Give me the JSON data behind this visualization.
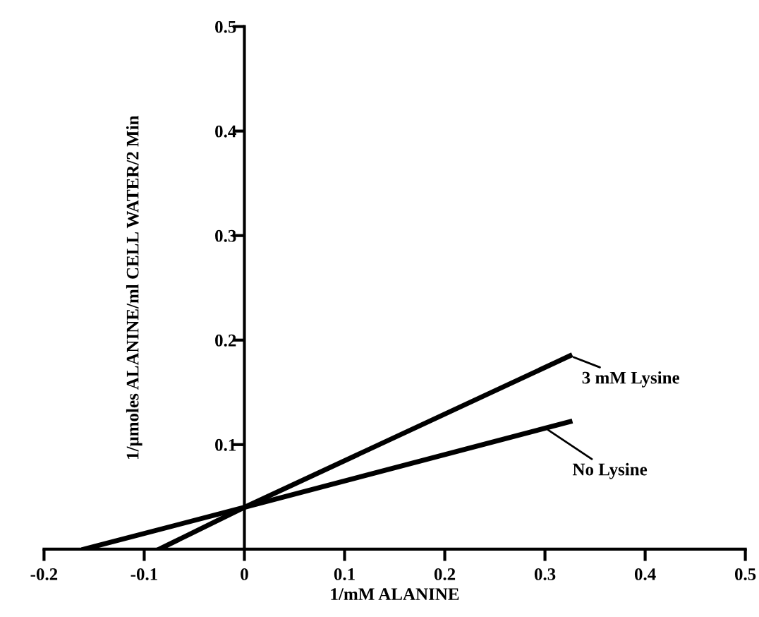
{
  "chart_data": {
    "type": "line",
    "xlabel": "1/mM ALANINE",
    "ylabel": "1/μmoles ALANINE/ml CELL WATER/2 Min",
    "series": [
      {
        "color": "#000000",
        "x": [
          -0.085,
          0,
          0.325
        ],
        "values": [
          0,
          0.04,
          0.185
        ]
      },
      {
        "color": "#000000",
        "x": [
          -0.16,
          0,
          0.325
        ],
        "values": [
          0,
          0.04,
          0.122
        ]
      }
    ],
    "annotations": [
      {
        "text": "3 mM Lysine",
        "x": 0.325,
        "y": 0.185
      },
      {
        "text": "No Lysine",
        "x": 0.3,
        "y": 0.116
      }
    ],
    "xlim": [
      -0.2,
      0.5
    ],
    "ylim": [
      0,
      0.5
    ],
    "xticks": [
      -0.2,
      -0.1,
      0,
      0.1,
      0.2,
      0.3,
      0.4,
      0.5
    ],
    "yticks": [
      {
        "value": 0.1,
        "label": "0.1"
      },
      {
        "value": 0.2,
        "label": "0.2"
      },
      {
        "value": 0.3,
        "label": "0.3"
      },
      {
        "value": 0.4,
        "label": "0.4"
      },
      {
        "value": 0.5,
        "label": "0.5"
      }
    ],
    "grid": false,
    "legend": false,
    "marker": "none",
    "line_style": "solid"
  }
}
